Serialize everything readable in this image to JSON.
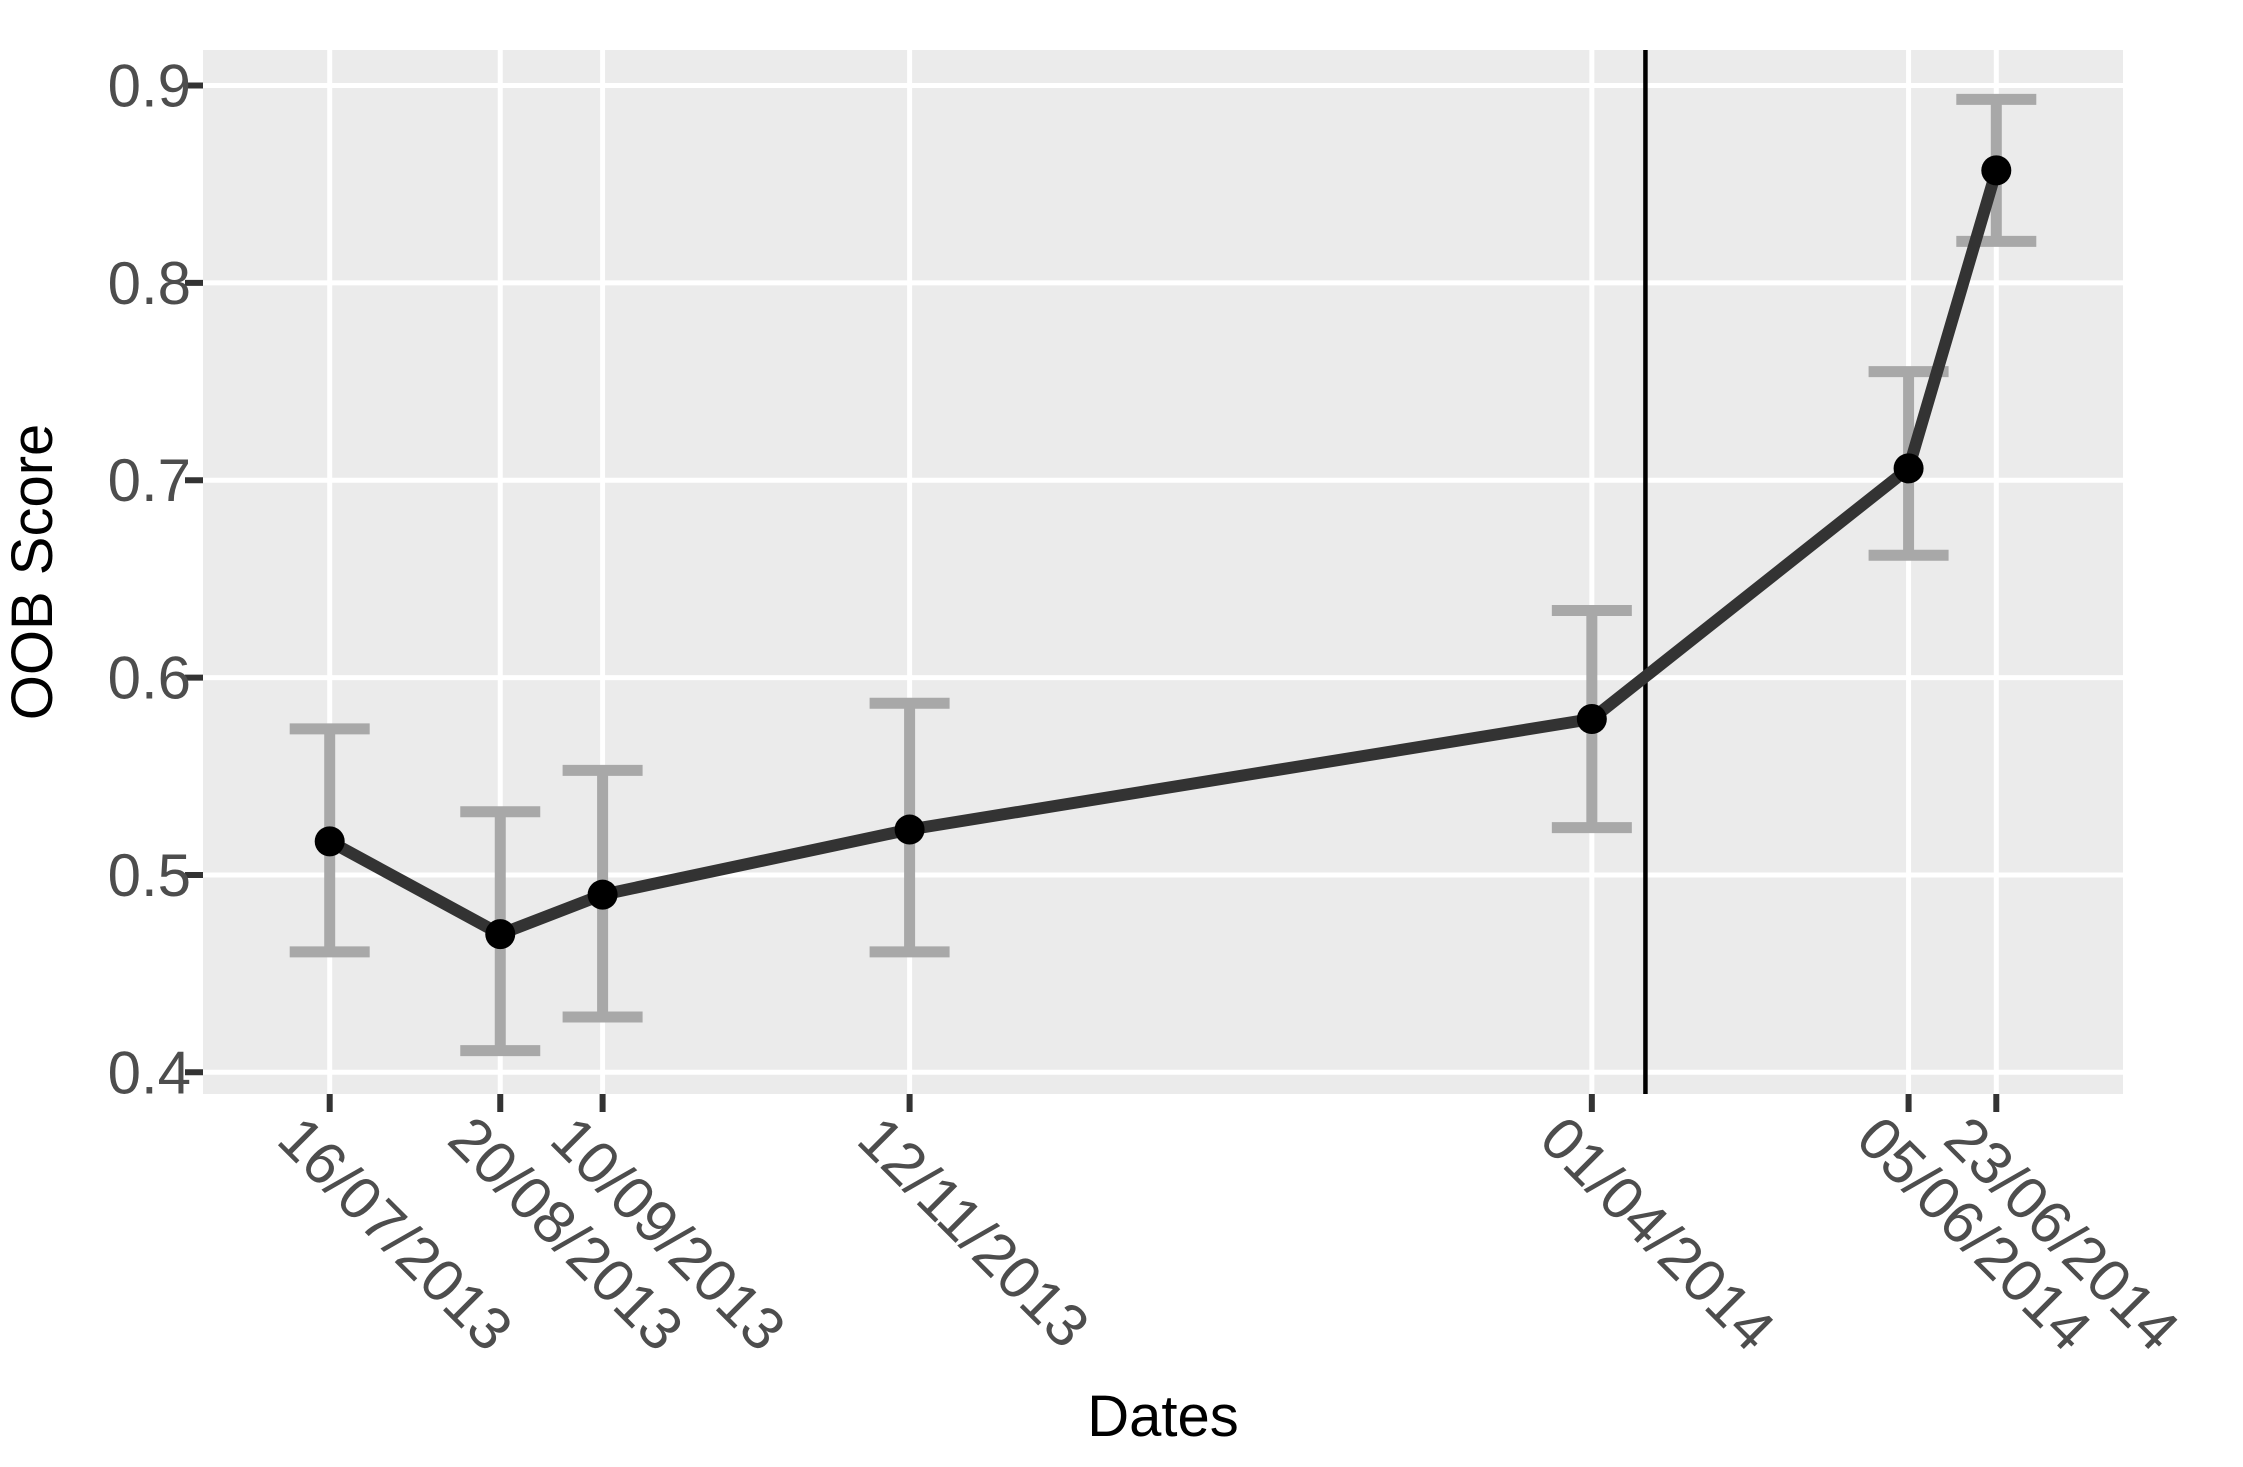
{
  "chart_data": {
    "type": "line",
    "title": "",
    "xlabel": "Dates",
    "ylabel": "OOB Score",
    "x_tick_labels": [
      "16/07/2013",
      "20/08/2013",
      "10/09/2013",
      "12/11/2013",
      "01/04/2014",
      "05/06/2014",
      "23/06/2014"
    ],
    "y_tick_labels": [
      "0.9",
      "0.8",
      "0.7",
      "0.6",
      "0.5",
      "0.4"
    ],
    "y_tick_values": [
      0.9,
      0.8,
      0.7,
      0.6,
      0.5,
      0.4
    ],
    "ylim": [
      0.389,
      0.918
    ],
    "x_axis_type": "date-proportional",
    "xlim_days_relative_to_first_point": [
      -26,
      368
    ],
    "grid": "major-only-white-on-gray",
    "legend": "none",
    "series": [
      {
        "name": "OOB Score",
        "points": [
          {
            "date": "16/07/2013",
            "value": 0.517,
            "err_low": 0.461,
            "err_high": 0.574
          },
          {
            "date": "20/08/2013",
            "value": 0.47,
            "err_low": 0.411,
            "err_high": 0.532
          },
          {
            "date": "10/09/2013",
            "value": 0.49,
            "err_low": 0.428,
            "err_high": 0.553
          },
          {
            "date": "12/11/2013",
            "value": 0.523,
            "err_low": 0.461,
            "err_high": 0.587
          },
          {
            "date": "01/04/2014",
            "value": 0.579,
            "err_low": 0.524,
            "err_high": 0.634
          },
          {
            "date": "05/06/2014",
            "value": 0.706,
            "err_low": 0.662,
            "err_high": 0.755
          },
          {
            "date": "23/06/2014",
            "value": 0.857,
            "err_low": 0.821,
            "err_high": 0.893
          }
        ]
      }
    ],
    "reference_line": {
      "orientation": "vertical",
      "date": "12/04/2014"
    },
    "colors": {
      "background": "#FFFFFF",
      "panel_background": "#EBEBEB",
      "gridline": "#FFFFFF",
      "series_line": "#333333",
      "point": "#000000",
      "error_bar": "#A8A8A8",
      "reference_line": "#000000",
      "tick_mark": "#333333",
      "tick_text": "#4D4D4D",
      "axis_title_text": "#000000"
    }
  }
}
